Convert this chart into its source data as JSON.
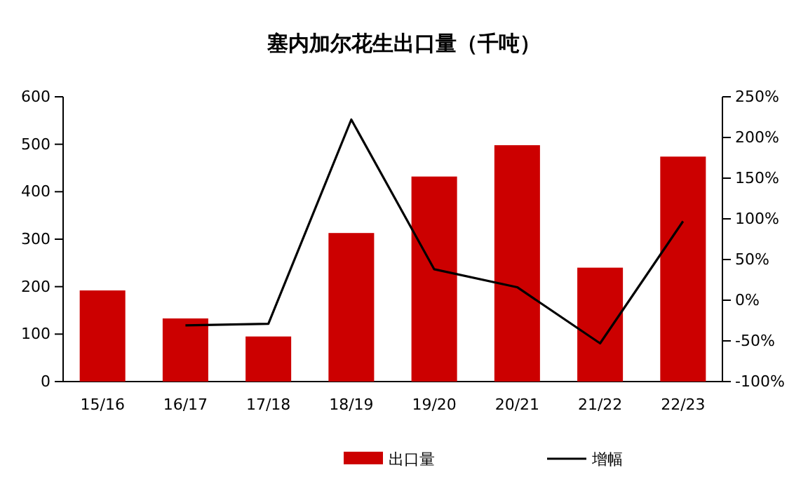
{
  "chart_data": {
    "type": "bar",
    "title": "塞内加尔花生出口量（千吨）",
    "categories": [
      "15/16",
      "16/17",
      "17/18",
      "18/19",
      "19/20",
      "20/21",
      "21/22",
      "22/23"
    ],
    "series": [
      {
        "name": "出口量",
        "color": "#cc0000",
        "values": [
          192,
          133,
          95,
          313,
          432,
          498,
          240,
          474
        ]
      },
      {
        "name": "增幅",
        "type": "line",
        "axis": "y2",
        "color": "#000000",
        "values": [
          null,
          -31,
          -29,
          222,
          38,
          16,
          -53,
          97
        ]
      }
    ],
    "ylim": [
      0,
      600
    ],
    "yticks": [
      0,
      100,
      200,
      300,
      400,
      500,
      600
    ],
    "y2lim": [
      -100,
      250
    ],
    "y2ticks": [
      {
        "value": -100,
        "label": "-100%"
      },
      {
        "value": -50,
        "label": "-50%"
      },
      {
        "value": 0,
        "label": "0%"
      },
      {
        "value": 50,
        "label": "50%"
      },
      {
        "value": 100,
        "label": "100%"
      },
      {
        "value": 150,
        "label": "150%"
      },
      {
        "value": 200,
        "label": "200%"
      },
      {
        "value": 250,
        "label": "250%"
      }
    ],
    "grid": false,
    "legend": "bottom",
    "marker": "none",
    "line_style": "solid"
  }
}
